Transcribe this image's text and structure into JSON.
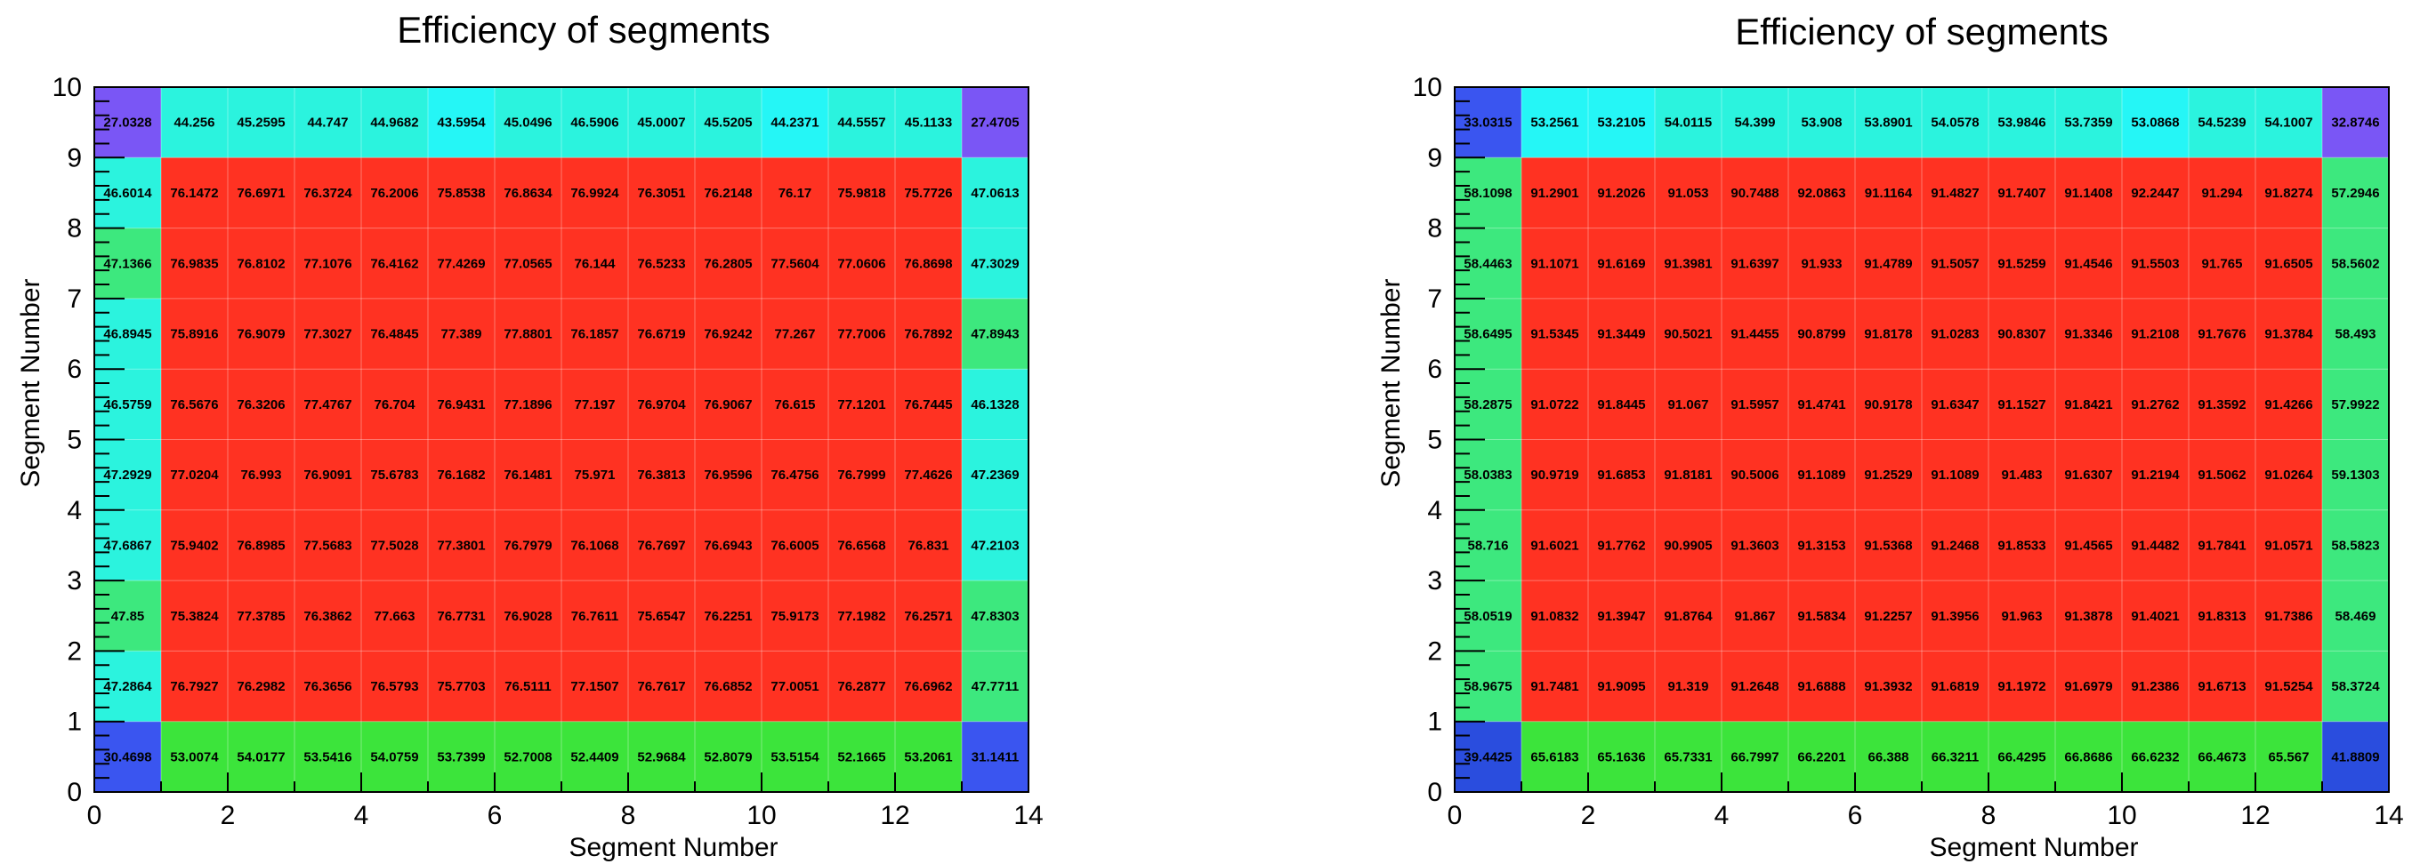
{
  "colors": {
    "red": "#ff3222",
    "green": "#3ce43b",
    "light_green": "#3de87e",
    "cyan": "#2bf3de",
    "aqua": "#25f6f6",
    "violet": "#7a56f5",
    "blue": "#3a55f0",
    "deep_blue": "#2a4dde"
  },
  "chart_data": [
    {
      "type": "heatmap",
      "title": "Efficiency of segments",
      "xlabel": "Segment Number",
      "ylabel": "Segment Number",
      "xlim": [
        0,
        14
      ],
      "ylim": [
        0,
        10
      ],
      "x_ticks": [
        "0",
        "2",
        "4",
        "6",
        "8",
        "10",
        "12",
        "14"
      ],
      "y_ticks": [
        "0",
        "1",
        "2",
        "3",
        "4",
        "5",
        "6",
        "7",
        "8",
        "9",
        "10"
      ],
      "rows": [
        {
          "y": 9,
          "values": [
            "27.0328",
            "44.256",
            "45.2595",
            "44.747",
            "44.9682",
            "43.5954",
            "45.0496",
            "46.5906",
            "45.0007",
            "45.5205",
            "44.2371",
            "44.5557",
            "45.1133",
            "27.4705"
          ],
          "colors": [
            "violet",
            "cyan",
            "cyan",
            "cyan",
            "cyan",
            "aqua",
            "cyan",
            "cyan",
            "cyan",
            "cyan",
            "aqua",
            "cyan",
            "cyan",
            "violet"
          ]
        },
        {
          "y": 8,
          "values": [
            "46.6014",
            "76.1472",
            "76.6971",
            "76.3724",
            "76.2006",
            "75.8538",
            "76.8634",
            "76.9924",
            "76.3051",
            "76.2148",
            "76.17",
            "75.9818",
            "75.7726",
            "47.0613"
          ],
          "colors": [
            "cyan",
            "red",
            "red",
            "red",
            "red",
            "red",
            "red",
            "red",
            "red",
            "red",
            "red",
            "red",
            "red",
            "cyan"
          ]
        },
        {
          "y": 7,
          "values": [
            "47.1366",
            "76.9835",
            "76.8102",
            "77.1076",
            "76.4162",
            "77.4269",
            "77.0565",
            "76.144",
            "76.5233",
            "76.2805",
            "77.5604",
            "77.0606",
            "76.8698",
            "47.3029"
          ],
          "colors": [
            "light_green",
            "red",
            "red",
            "red",
            "red",
            "red",
            "red",
            "red",
            "red",
            "red",
            "red",
            "red",
            "red",
            "cyan"
          ]
        },
        {
          "y": 6,
          "values": [
            "46.8945",
            "75.8916",
            "76.9079",
            "77.3027",
            "76.4845",
            "77.389",
            "77.8801",
            "76.1857",
            "76.6719",
            "76.9242",
            "77.267",
            "77.7006",
            "76.7892",
            "47.8943"
          ],
          "colors": [
            "cyan",
            "red",
            "red",
            "red",
            "red",
            "red",
            "red",
            "red",
            "red",
            "red",
            "red",
            "red",
            "red",
            "light_green"
          ]
        },
        {
          "y": 5,
          "values": [
            "46.5759",
            "76.5676",
            "76.3206",
            "77.4767",
            "76.704",
            "76.9431",
            "77.1896",
            "77.197",
            "76.9704",
            "76.9067",
            "76.615",
            "77.1201",
            "76.7445",
            "46.1328"
          ],
          "colors": [
            "cyan",
            "red",
            "red",
            "red",
            "red",
            "red",
            "red",
            "red",
            "red",
            "red",
            "red",
            "red",
            "red",
            "cyan"
          ]
        },
        {
          "y": 4,
          "values": [
            "47.2929",
            "77.0204",
            "76.993",
            "76.9091",
            "75.6783",
            "76.1682",
            "76.1481",
            "75.971",
            "76.3813",
            "76.9596",
            "76.4756",
            "76.7999",
            "77.4626",
            "47.2369"
          ],
          "colors": [
            "cyan",
            "red",
            "red",
            "red",
            "red",
            "red",
            "red",
            "red",
            "red",
            "red",
            "red",
            "red",
            "red",
            "cyan"
          ]
        },
        {
          "y": 3,
          "values": [
            "47.6867",
            "75.9402",
            "76.8985",
            "77.5683",
            "77.5028",
            "77.3801",
            "76.7979",
            "76.1068",
            "76.7697",
            "76.6943",
            "76.6005",
            "76.6568",
            "76.831",
            "47.2103"
          ],
          "colors": [
            "cyan",
            "red",
            "red",
            "red",
            "red",
            "red",
            "red",
            "red",
            "red",
            "red",
            "red",
            "red",
            "red",
            "cyan"
          ]
        },
        {
          "y": 2,
          "values": [
            "47.85",
            "75.3824",
            "77.3785",
            "76.3862",
            "77.663",
            "76.7731",
            "76.9028",
            "76.7611",
            "75.6547",
            "76.2251",
            "75.9173",
            "77.1982",
            "76.2571",
            "47.8303"
          ],
          "colors": [
            "light_green",
            "red",
            "red",
            "red",
            "red",
            "red",
            "red",
            "red",
            "red",
            "red",
            "red",
            "red",
            "red",
            "light_green"
          ]
        },
        {
          "y": 1,
          "values": [
            "47.2864",
            "76.7927",
            "76.2982",
            "76.3656",
            "76.5793",
            "75.7703",
            "76.5111",
            "77.1507",
            "76.7617",
            "76.6852",
            "77.0051",
            "76.2877",
            "76.6962",
            "47.7711"
          ],
          "colors": [
            "cyan",
            "red",
            "red",
            "red",
            "red",
            "red",
            "red",
            "red",
            "red",
            "red",
            "red",
            "red",
            "red",
            "light_green"
          ]
        },
        {
          "y": 0,
          "values": [
            "30.4698",
            "53.0074",
            "54.0177",
            "53.5416",
            "54.0759",
            "53.7399",
            "52.7008",
            "52.4409",
            "52.9684",
            "52.8079",
            "53.5154",
            "52.1665",
            "53.2061",
            "31.1411"
          ],
          "colors": [
            "blue",
            "green",
            "green",
            "green",
            "green",
            "green",
            "green",
            "green",
            "green",
            "green",
            "green",
            "green",
            "green",
            "blue"
          ]
        }
      ]
    },
    {
      "type": "heatmap",
      "title": "Efficiency of segments",
      "xlabel": "Segment Number",
      "ylabel": "Segment Number",
      "xlim": [
        0,
        14
      ],
      "ylim": [
        0,
        10
      ],
      "x_ticks": [
        "0",
        "2",
        "4",
        "6",
        "8",
        "10",
        "12",
        "14"
      ],
      "y_ticks": [
        "0",
        "1",
        "2",
        "3",
        "4",
        "5",
        "6",
        "7",
        "8",
        "9",
        "10"
      ],
      "rows": [
        {
          "y": 9,
          "values": [
            "33.0315",
            "53.2561",
            "53.2105",
            "54.0115",
            "54.399",
            "53.908",
            "53.8901",
            "54.0578",
            "53.9846",
            "53.7359",
            "53.0868",
            "54.5239",
            "54.1007",
            "32.8746"
          ],
          "colors": [
            "blue",
            "aqua",
            "aqua",
            "cyan",
            "cyan",
            "cyan",
            "cyan",
            "cyan",
            "cyan",
            "cyan",
            "aqua",
            "cyan",
            "cyan",
            "violet"
          ]
        },
        {
          "y": 8,
          "values": [
            "58.1098",
            "91.2901",
            "91.2026",
            "91.053",
            "90.7488",
            "92.0863",
            "91.1164",
            "91.4827",
            "91.7407",
            "91.1408",
            "92.2447",
            "91.294",
            "91.8274",
            "57.2946"
          ],
          "colors": [
            "light_green",
            "red",
            "red",
            "red",
            "red",
            "red",
            "red",
            "red",
            "red",
            "red",
            "red",
            "red",
            "red",
            "light_green"
          ]
        },
        {
          "y": 7,
          "values": [
            "58.4463",
            "91.1071",
            "91.6169",
            "91.3981",
            "91.6397",
            "91.933",
            "91.4789",
            "91.5057",
            "91.5259",
            "91.4546",
            "91.5503",
            "91.765",
            "91.6505",
            "58.5602"
          ],
          "colors": [
            "light_green",
            "red",
            "red",
            "red",
            "red",
            "red",
            "red",
            "red",
            "red",
            "red",
            "red",
            "red",
            "red",
            "light_green"
          ]
        },
        {
          "y": 6,
          "values": [
            "58.6495",
            "91.5345",
            "91.3449",
            "90.5021",
            "91.4455",
            "90.8799",
            "91.8178",
            "91.0283",
            "90.8307",
            "91.3346",
            "91.2108",
            "91.7676",
            "91.3784",
            "58.493"
          ],
          "colors": [
            "light_green",
            "red",
            "red",
            "red",
            "red",
            "red",
            "red",
            "red",
            "red",
            "red",
            "red",
            "red",
            "red",
            "light_green"
          ]
        },
        {
          "y": 5,
          "values": [
            "58.2875",
            "91.0722",
            "91.8445",
            "91.067",
            "91.5957",
            "91.4741",
            "90.9178",
            "91.6347",
            "91.1527",
            "91.8421",
            "91.2762",
            "91.3592",
            "91.4266",
            "57.9922"
          ],
          "colors": [
            "light_green",
            "red",
            "red",
            "red",
            "red",
            "red",
            "red",
            "red",
            "red",
            "red",
            "red",
            "red",
            "red",
            "light_green"
          ]
        },
        {
          "y": 4,
          "values": [
            "58.0383",
            "90.9719",
            "91.6853",
            "91.8181",
            "90.5006",
            "91.1089",
            "91.2529",
            "91.1089",
            "91.483",
            "91.6307",
            "91.2194",
            "91.5062",
            "91.0264",
            "59.1303"
          ],
          "colors": [
            "light_green",
            "red",
            "red",
            "red",
            "red",
            "red",
            "red",
            "red",
            "red",
            "red",
            "red",
            "red",
            "red",
            "light_green"
          ]
        },
        {
          "y": 3,
          "values": [
            "58.716",
            "91.6021",
            "91.7762",
            "90.9905",
            "91.3603",
            "91.3153",
            "91.5368",
            "91.2468",
            "91.8533",
            "91.4565",
            "91.4482",
            "91.7841",
            "91.0571",
            "58.5823"
          ],
          "colors": [
            "light_green",
            "red",
            "red",
            "red",
            "red",
            "red",
            "red",
            "red",
            "red",
            "red",
            "red",
            "red",
            "red",
            "light_green"
          ]
        },
        {
          "y": 2,
          "values": [
            "58.0519",
            "91.0832",
            "91.3947",
            "91.8764",
            "91.867",
            "91.5834",
            "91.2257",
            "91.3956",
            "91.963",
            "91.3878",
            "91.4021",
            "91.8313",
            "91.7386",
            "58.469"
          ],
          "colors": [
            "light_green",
            "red",
            "red",
            "red",
            "red",
            "red",
            "red",
            "red",
            "red",
            "red",
            "red",
            "red",
            "red",
            "light_green"
          ]
        },
        {
          "y": 1,
          "values": [
            "58.9675",
            "91.7481",
            "91.9095",
            "91.319",
            "91.2648",
            "91.6888",
            "91.3932",
            "91.6819",
            "91.1972",
            "91.6979",
            "91.2386",
            "91.6713",
            "91.5254",
            "58.3724"
          ],
          "colors": [
            "light_green",
            "red",
            "red",
            "red",
            "red",
            "red",
            "red",
            "red",
            "red",
            "red",
            "red",
            "red",
            "red",
            "light_green"
          ]
        },
        {
          "y": 0,
          "values": [
            "39.4425",
            "65.6183",
            "65.1636",
            "65.7331",
            "66.7997",
            "66.2201",
            "66.388",
            "66.3211",
            "66.4295",
            "66.8686",
            "66.6232",
            "66.4673",
            "65.567",
            "41.8809"
          ],
          "colors": [
            "deep_blue",
            "green",
            "green",
            "green",
            "green",
            "green",
            "green",
            "green",
            "green",
            "green",
            "green",
            "green",
            "green",
            "deep_blue"
          ]
        }
      ]
    }
  ]
}
